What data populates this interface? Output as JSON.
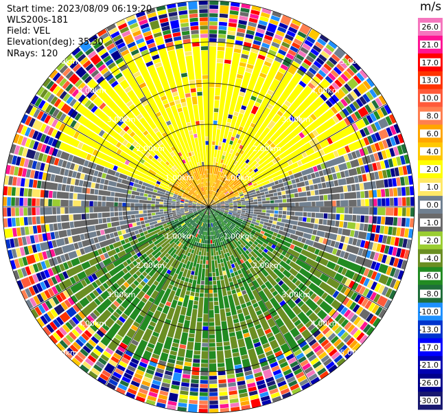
{
  "header": {
    "start_time": "Start time: 2023/08/09 06:19:20",
    "instrument": "WLS200s-181",
    "field": "Field: VEL",
    "elevation": "Elevation(deg): 35.30",
    "nrays": "NRays: 120"
  },
  "colorbar": {
    "unit": "m/s",
    "ticks": [
      "26.0",
      "21.0",
      "17.0",
      "13.0",
      "10.0",
      "8.0",
      "6.0",
      "4.0",
      "2.0",
      "1.0",
      "0.0",
      "-1.0",
      "-2.0",
      "-4.0",
      "-6.0",
      "-8.0",
      "-10.0",
      "-13.0",
      "-17.0",
      "-21.0",
      "-26.0",
      "-30.0"
    ],
    "colors": [
      "#f576be",
      "#ff1493",
      "#ff0000",
      "#ff3300",
      "#ff5a3a",
      "#ff7f50",
      "#ffa500",
      "#ffc800",
      "#ffff00",
      "#ffe866",
      "#708090",
      "#6a6a6a",
      "#9acd32",
      "#6b8e23",
      "#228b22",
      "#1e6e3a",
      "#1e90ff",
      "#0033cc",
      "#0000ff",
      "#0000b0",
      "#00008b",
      "#191970"
    ]
  },
  "range_labels": [
    "1.00km",
    "2.00km",
    "3.00km",
    "4.00km",
    "5.00km"
  ],
  "chart_data": {
    "type": "heatmap",
    "projection": "polar PPI",
    "field": "VEL",
    "nrays": 120,
    "range_rings_km": [
      1,
      2,
      3,
      4,
      5
    ],
    "color_scale_ms": [
      26,
      21,
      17,
      13,
      10,
      8,
      6,
      4,
      2,
      1,
      0,
      -1,
      -2,
      -4,
      -6,
      -8,
      -10,
      -13,
      -17,
      -21,
      -26,
      -30
    ],
    "pattern": {
      "north_sector_ms": 3,
      "near_north_ms": 6,
      "east_west_ms": 0,
      "south_sector_ms": -4,
      "near_south_ms": -6,
      "noise_beyond_km": 4
    }
  }
}
